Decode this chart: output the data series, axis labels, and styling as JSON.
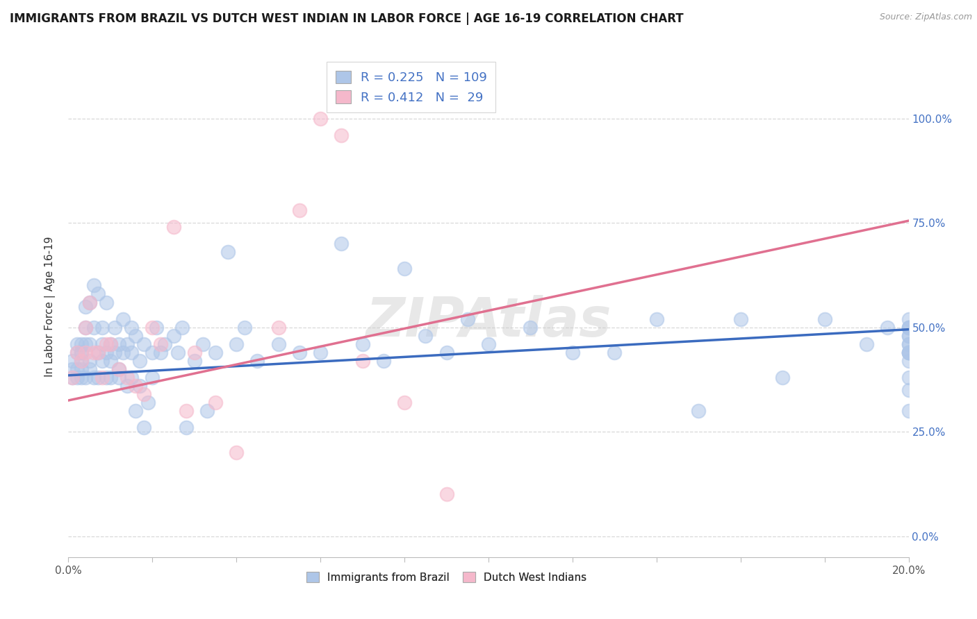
{
  "title": "IMMIGRANTS FROM BRAZIL VS DUTCH WEST INDIAN IN LABOR FORCE | AGE 16-19 CORRELATION CHART",
  "source": "Source: ZipAtlas.com",
  "ylabel": "In Labor Force | Age 16-19",
  "xlim": [
    0.0,
    0.2
  ],
  "ylim": [
    -0.05,
    1.15
  ],
  "ytick_values": [
    0.0,
    0.25,
    0.5,
    0.75,
    1.0
  ],
  "xtick_values": [
    0.0,
    0.02,
    0.04,
    0.06,
    0.08,
    0.1,
    0.12,
    0.14,
    0.16,
    0.18,
    0.2
  ],
  "brazil_R": "0.225",
  "brazil_N": "109",
  "dutch_R": "0.412",
  "dutch_N": " 29",
  "brazil_color": "#aec6e8",
  "dutch_color": "#f5b8cb",
  "brazil_line_color": "#3b6bbf",
  "dutch_line_color": "#e07090",
  "brazil_scatter_x": [
    0.001,
    0.001,
    0.001,
    0.002,
    0.002,
    0.002,
    0.002,
    0.003,
    0.003,
    0.003,
    0.003,
    0.003,
    0.003,
    0.004,
    0.004,
    0.004,
    0.004,
    0.005,
    0.005,
    0.005,
    0.005,
    0.006,
    0.006,
    0.006,
    0.007,
    0.007,
    0.007,
    0.008,
    0.008,
    0.008,
    0.009,
    0.009,
    0.009,
    0.01,
    0.01,
    0.01,
    0.011,
    0.011,
    0.012,
    0.012,
    0.012,
    0.013,
    0.013,
    0.014,
    0.014,
    0.015,
    0.015,
    0.015,
    0.016,
    0.016,
    0.017,
    0.017,
    0.018,
    0.018,
    0.019,
    0.02,
    0.02,
    0.021,
    0.022,
    0.023,
    0.025,
    0.026,
    0.027,
    0.028,
    0.03,
    0.032,
    0.033,
    0.035,
    0.038,
    0.04,
    0.042,
    0.045,
    0.05,
    0.055,
    0.06,
    0.065,
    0.07,
    0.075,
    0.08,
    0.085,
    0.09,
    0.095,
    0.1,
    0.11,
    0.12,
    0.13,
    0.14,
    0.15,
    0.16,
    0.17,
    0.18,
    0.19,
    0.195,
    0.2,
    0.2,
    0.2,
    0.2,
    0.2,
    0.2,
    0.2,
    0.2,
    0.2,
    0.2,
    0.2,
    0.2,
    0.2,
    0.2,
    0.2,
    0.2
  ],
  "brazil_scatter_y": [
    0.4,
    0.42,
    0.38,
    0.44,
    0.46,
    0.4,
    0.38,
    0.44,
    0.42,
    0.46,
    0.4,
    0.38,
    0.44,
    0.5,
    0.46,
    0.55,
    0.38,
    0.56,
    0.42,
    0.46,
    0.4,
    0.6,
    0.5,
    0.38,
    0.58,
    0.44,
    0.38,
    0.46,
    0.5,
    0.42,
    0.38,
    0.44,
    0.56,
    0.46,
    0.42,
    0.38,
    0.5,
    0.44,
    0.46,
    0.4,
    0.38,
    0.52,
    0.44,
    0.46,
    0.36,
    0.44,
    0.5,
    0.38,
    0.48,
    0.3,
    0.42,
    0.36,
    0.46,
    0.26,
    0.32,
    0.44,
    0.38,
    0.5,
    0.44,
    0.46,
    0.48,
    0.44,
    0.5,
    0.26,
    0.42,
    0.46,
    0.3,
    0.44,
    0.68,
    0.46,
    0.5,
    0.42,
    0.46,
    0.44,
    0.44,
    0.7,
    0.46,
    0.42,
    0.64,
    0.48,
    0.44,
    0.52,
    0.46,
    0.5,
    0.44,
    0.44,
    0.52,
    0.3,
    0.52,
    0.38,
    0.52,
    0.46,
    0.5,
    0.5,
    0.46,
    0.44,
    0.42,
    0.48,
    0.44,
    0.52,
    0.5,
    0.44,
    0.46,
    0.5,
    0.48,
    0.44,
    0.38,
    0.3,
    0.35
  ],
  "dutch_scatter_x": [
    0.001,
    0.002,
    0.003,
    0.004,
    0.004,
    0.005,
    0.006,
    0.007,
    0.008,
    0.009,
    0.01,
    0.012,
    0.014,
    0.016,
    0.018,
    0.02,
    0.022,
    0.025,
    0.028,
    0.03,
    0.035,
    0.04,
    0.05,
    0.055,
    0.06,
    0.065,
    0.07,
    0.08,
    0.09
  ],
  "dutch_scatter_y": [
    0.38,
    0.44,
    0.42,
    0.5,
    0.44,
    0.56,
    0.44,
    0.44,
    0.38,
    0.46,
    0.46,
    0.4,
    0.38,
    0.36,
    0.34,
    0.5,
    0.46,
    0.74,
    0.3,
    0.44,
    0.32,
    0.2,
    0.5,
    0.78,
    1.0,
    0.96,
    0.42,
    0.32,
    0.1
  ],
  "brazil_trend_x": [
    0.0,
    0.2
  ],
  "brazil_trend_y": [
    0.385,
    0.495
  ],
  "dutch_trend_x": [
    0.0,
    0.2
  ],
  "dutch_trend_y": [
    0.325,
    0.755
  ],
  "background_color": "#ffffff",
  "grid_color": "#d8d8d8",
  "right_tick_color": "#4472c4",
  "watermark": "ZIPAtlas"
}
